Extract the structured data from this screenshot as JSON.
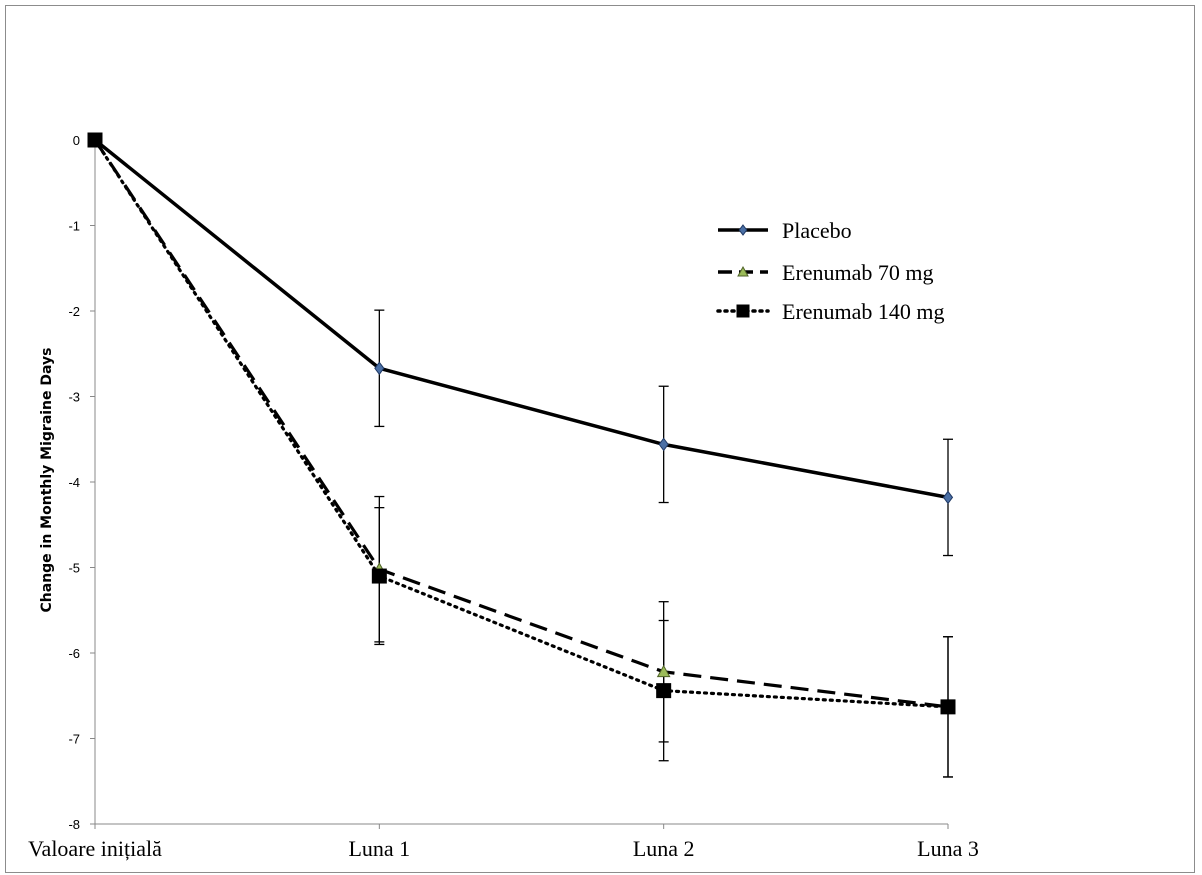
{
  "chart_data": {
    "type": "line",
    "title": "",
    "xlabel": "",
    "ylabel": "Change in Monthly Migraine Days",
    "ylim": [
      -8,
      0
    ],
    "yticks": [
      0,
      -1,
      -2,
      -3,
      -4,
      -5,
      -6,
      -7,
      -8
    ],
    "grid": false,
    "legend_position": "top-right",
    "categories": [
      "Valoare inițială",
      "Luna 1",
      "Luna 2",
      "Luna 3"
    ],
    "series": [
      {
        "name": "Placebo",
        "style": "solid",
        "marker": "diamond",
        "color": "#000000",
        "marker_color": "#4a6fa5",
        "values": [
          0,
          -2.67,
          -3.56,
          -4.18
        ],
        "error": [
          0,
          0.68,
          0.68,
          0.68
        ]
      },
      {
        "name": "Erenumab 70 mg",
        "style": "dashed",
        "marker": "triangle",
        "color": "#000000",
        "marker_color": "#9bbb59",
        "values": [
          0,
          -5.02,
          -6.22,
          -6.63
        ],
        "error": [
          0,
          0.85,
          0.82,
          0.82
        ]
      },
      {
        "name": "Erenumab 140 mg",
        "style": "dotted",
        "marker": "square",
        "color": "#000000",
        "marker_color": "#000000",
        "values": [
          0,
          -5.1,
          -6.44,
          -6.63
        ],
        "error": [
          0,
          0.8,
          0.82,
          0.82
        ]
      }
    ]
  }
}
